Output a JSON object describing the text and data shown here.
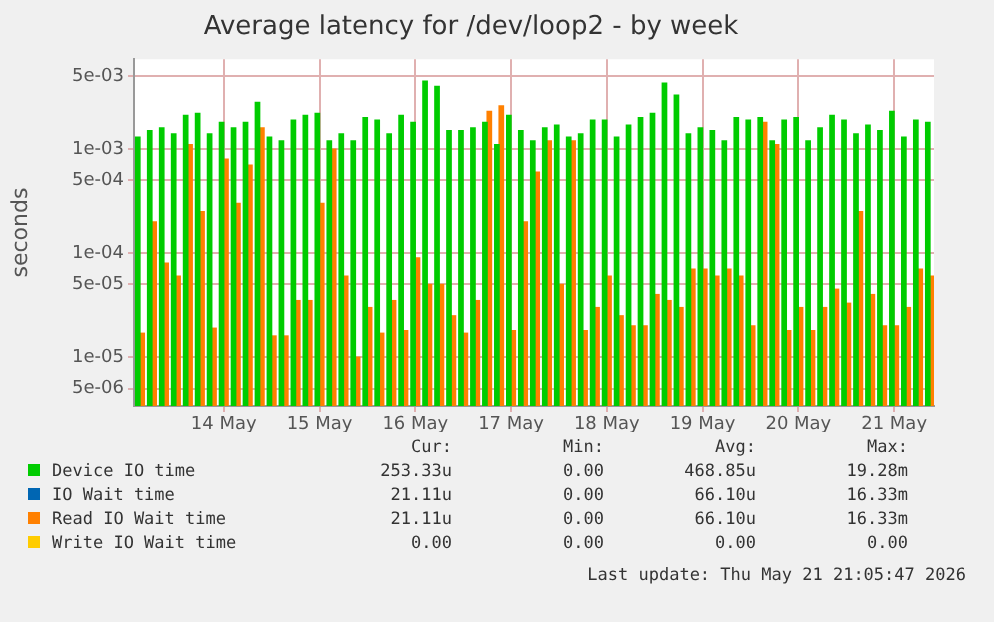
{
  "chart_data": {
    "type": "bar",
    "title": "Average latency for /dev/loop2 - by week",
    "ylabel": "seconds",
    "log": "y",
    "grid": true,
    "legend": "bottom",
    "ylim": [
      3.4e-06,
      0.0073
    ],
    "yticks": [
      {
        "value": 5e-06,
        "label": "5e-06"
      },
      {
        "value": 1e-05,
        "label": "1e-05"
      },
      {
        "value": 5e-05,
        "label": "5e-05"
      },
      {
        "value": 0.0001,
        "label": "1e-04"
      },
      {
        "value": 0.0005,
        "label": "5e-04"
      },
      {
        "value": 0.001,
        "label": "1e-03"
      },
      {
        "value": 0.005,
        "label": "5e-03"
      }
    ],
    "xlim": [
      "2026-05-13T01:30",
      "2026-05-21T10:00"
    ],
    "xticks": [
      {
        "value": "2026-05-14",
        "label": "14 May"
      },
      {
        "value": "2026-05-15",
        "label": "15 May"
      },
      {
        "value": "2026-05-16",
        "label": "16 May"
      },
      {
        "value": "2026-05-17",
        "label": "17 May"
      },
      {
        "value": "2026-05-18",
        "label": "18 May"
      },
      {
        "value": "2026-05-19",
        "label": "19 May"
      },
      {
        "value": "2026-05-20",
        "label": "20 May"
      },
      {
        "value": "2026-05-21",
        "label": "21 May"
      }
    ],
    "x": [
      "2026-05-13T03:00",
      "2026-05-13T06:00",
      "2026-05-13T09:00",
      "2026-05-13T12:00",
      "2026-05-13T15:00",
      "2026-05-13T18:00",
      "2026-05-13T21:00",
      "2026-05-14T00:00",
      "2026-05-14T03:00",
      "2026-05-14T06:00",
      "2026-05-14T09:00",
      "2026-05-14T12:00",
      "2026-05-14T15:00",
      "2026-05-14T18:00",
      "2026-05-14T21:00",
      "2026-05-15T00:00",
      "2026-05-15T03:00",
      "2026-05-15T06:00",
      "2026-05-15T09:00",
      "2026-05-15T12:00",
      "2026-05-15T15:00",
      "2026-05-15T18:00",
      "2026-05-15T21:00",
      "2026-05-16T00:00",
      "2026-05-16T03:00",
      "2026-05-16T06:00",
      "2026-05-16T09:00",
      "2026-05-16T12:00",
      "2026-05-16T15:00",
      "2026-05-16T18:00",
      "2026-05-16T21:00",
      "2026-05-17T00:00",
      "2026-05-17T03:00",
      "2026-05-17T06:00",
      "2026-05-17T09:00",
      "2026-05-17T12:00",
      "2026-05-17T15:00",
      "2026-05-17T18:00",
      "2026-05-17T21:00",
      "2026-05-18T00:00",
      "2026-05-18T03:00",
      "2026-05-18T06:00",
      "2026-05-18T09:00",
      "2026-05-18T12:00",
      "2026-05-18T15:00",
      "2026-05-18T18:00",
      "2026-05-18T21:00",
      "2026-05-19T00:00",
      "2026-05-19T03:00",
      "2026-05-19T06:00",
      "2026-05-19T09:00",
      "2026-05-19T12:00",
      "2026-05-19T15:00",
      "2026-05-19T18:00",
      "2026-05-19T21:00",
      "2026-05-20T00:00",
      "2026-05-20T03:00",
      "2026-05-20T06:00",
      "2026-05-20T09:00",
      "2026-05-20T12:00",
      "2026-05-20T15:00",
      "2026-05-20T18:00",
      "2026-05-20T21:00",
      "2026-05-21T00:00",
      "2026-05-21T03:00",
      "2026-05-21T06:00",
      "2026-05-21T09:00"
    ],
    "series": [
      {
        "name": "Device IO time",
        "color": "#00cc00",
        "values": [
          0.0013,
          0.0015,
          0.0016,
          0.0014,
          0.0021,
          0.0022,
          0.0014,
          0.0018,
          0.0016,
          0.0018,
          0.0028,
          0.0013,
          0.0012,
          0.0019,
          0.0021,
          0.0022,
          0.0012,
          0.0014,
          0.0012,
          0.002,
          0.0019,
          0.0014,
          0.0021,
          0.0018,
          0.0045,
          0.004,
          0.0015,
          0.0015,
          0.0016,
          0.0018,
          0.0011,
          0.0021,
          0.0015,
          0.0012,
          0.0016,
          0.0017,
          0.0013,
          0.0014,
          0.0019,
          0.0019,
          0.0013,
          0.0017,
          0.002,
          0.0022,
          0.0043,
          0.0033,
          0.0014,
          0.0016,
          0.0015,
          0.0012,
          0.002,
          0.0019,
          0.002,
          0.0012,
          0.0019,
          0.002,
          0.0012,
          0.0016,
          0.0021,
          0.0019,
          0.0014,
          0.0017,
          0.0015,
          0.0023,
          0.0013,
          0.0019,
          0.0018
        ]
      },
      {
        "name": "IO Wait time",
        "color": "#0066b3",
        "values": [
          null,
          null,
          null,
          null,
          null,
          null,
          null,
          null,
          null,
          null,
          null,
          null,
          null,
          null,
          null,
          null,
          null,
          null,
          null,
          null,
          null,
          null,
          null,
          null,
          null,
          null,
          null,
          null,
          null,
          null,
          null,
          null,
          null,
          null,
          null,
          null,
          null,
          null,
          null,
          null,
          null,
          null,
          null,
          null,
          null,
          null,
          null,
          null,
          null,
          null,
          null,
          null,
          null,
          null,
          null,
          null,
          null,
          null,
          null,
          null,
          null,
          null,
          null,
          null,
          null,
          null,
          null
        ]
      },
      {
        "name": "Read IO Wait time",
        "color": "#ff8000",
        "values": [
          1.7e-05,
          0.0002,
          8e-05,
          6e-05,
          0.0011,
          0.00025,
          1.9e-05,
          0.0008,
          0.0003,
          0.0007,
          0.0016,
          1.6e-05,
          1.6e-05,
          3.5e-05,
          3.5e-05,
          0.0003,
          0.001,
          6e-05,
          1e-05,
          3e-05,
          1.7e-05,
          3.5e-05,
          1.8e-05,
          9e-05,
          5e-05,
          5e-05,
          2.5e-05,
          1.7e-05,
          3.5e-05,
          0.0023,
          0.0026,
          1.8e-05,
          0.0002,
          0.0006,
          0.0012,
          5e-05,
          0.0012,
          1.8e-05,
          3e-05,
          6e-05,
          2.5e-05,
          2e-05,
          2e-05,
          4e-05,
          3.5e-05,
          3e-05,
          7e-05,
          7e-05,
          6e-05,
          7e-05,
          6e-05,
          2e-05,
          0.0018,
          0.0011,
          1.8e-05,
          3e-05,
          1.8e-05,
          3e-05,
          4.5e-05,
          3.3e-05,
          0.00025,
          4e-05,
          2e-05,
          2e-05,
          3e-05,
          7e-05,
          6e-05
        ]
      },
      {
        "name": "Write IO Wait time",
        "color": "#ffcc00",
        "values": [
          null,
          null,
          null,
          null,
          null,
          null,
          null,
          null,
          null,
          null,
          null,
          null,
          null,
          null,
          null,
          null,
          null,
          null,
          null,
          null,
          null,
          null,
          null,
          null,
          null,
          null,
          null,
          null,
          null,
          null,
          null,
          null,
          null,
          null,
          null,
          null,
          null,
          null,
          null,
          null,
          null,
          null,
          null,
          null,
          null,
          null,
          null,
          null,
          null,
          null,
          null,
          null,
          null,
          null,
          null,
          null,
          null,
          null,
          null,
          null,
          null,
          null,
          null,
          null,
          null,
          null,
          null
        ]
      }
    ],
    "annotations": [
      "Cur:",
      "Min:",
      "Avg:",
      "Max:",
      "253.33u",
      "0.00",
      "468.85u",
      "19.28m",
      "21.11u",
      "0.00",
      "66.10u",
      "16.33m",
      "21.11u",
      "0.00",
      "66.10u",
      "16.33m",
      "0.00",
      "0.00",
      "0.00",
      "0.00",
      "Last update: Thu May 21 21:05:47 2026"
    ]
  }
}
